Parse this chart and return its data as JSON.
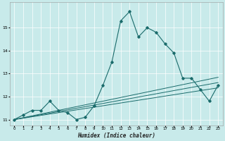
{
  "title": "",
  "xlabel": "Humidex (Indice chaleur)",
  "ylabel": "",
  "background_color": "#c8eaea",
  "grid_color": "#ffffff",
  "line_color": "#1a6b6b",
  "xlim": [
    -0.5,
    23.5
  ],
  "ylim": [
    10.75,
    16.1
  ],
  "yticks": [
    11,
    12,
    13,
    14,
    15
  ],
  "ytick_labels": [
    "11",
    "12",
    "13",
    "14",
    "15"
  ],
  "xticks": [
    0,
    1,
    2,
    3,
    4,
    5,
    6,
    7,
    8,
    9,
    10,
    11,
    12,
    13,
    14,
    15,
    16,
    17,
    18,
    19,
    20,
    21,
    22,
    23
  ],
  "x": [
    0,
    1,
    2,
    3,
    4,
    5,
    6,
    7,
    8,
    9,
    10,
    11,
    12,
    13,
    14,
    15,
    16,
    17,
    18,
    19,
    20,
    21,
    22,
    23
  ],
  "y_main": [
    11.0,
    11.2,
    11.4,
    11.4,
    11.8,
    11.4,
    11.3,
    11.0,
    11.1,
    11.6,
    12.5,
    13.5,
    15.3,
    15.7,
    14.6,
    15.0,
    14.8,
    14.3,
    13.9,
    12.8,
    12.8,
    12.3,
    11.8,
    12.5
  ],
  "y_line1": [
    11.0,
    11.08,
    11.16,
    11.24,
    11.32,
    11.4,
    11.48,
    11.56,
    11.64,
    11.72,
    11.8,
    11.88,
    11.96,
    12.04,
    12.12,
    12.2,
    12.28,
    12.36,
    12.44,
    12.52,
    12.6,
    12.68,
    12.76,
    12.84
  ],
  "y_line2": [
    11.0,
    11.07,
    11.14,
    11.21,
    11.28,
    11.35,
    11.42,
    11.49,
    11.56,
    11.63,
    11.7,
    11.77,
    11.84,
    11.91,
    11.98,
    12.05,
    12.12,
    12.19,
    12.26,
    12.33,
    12.4,
    12.47,
    12.54,
    12.61
  ],
  "y_line3": [
    11.0,
    11.06,
    11.12,
    11.18,
    11.24,
    11.3,
    11.36,
    11.42,
    11.48,
    11.54,
    11.6,
    11.66,
    11.72,
    11.78,
    11.84,
    11.9,
    11.96,
    12.02,
    12.08,
    12.14,
    12.2,
    12.26,
    12.32,
    12.38
  ]
}
